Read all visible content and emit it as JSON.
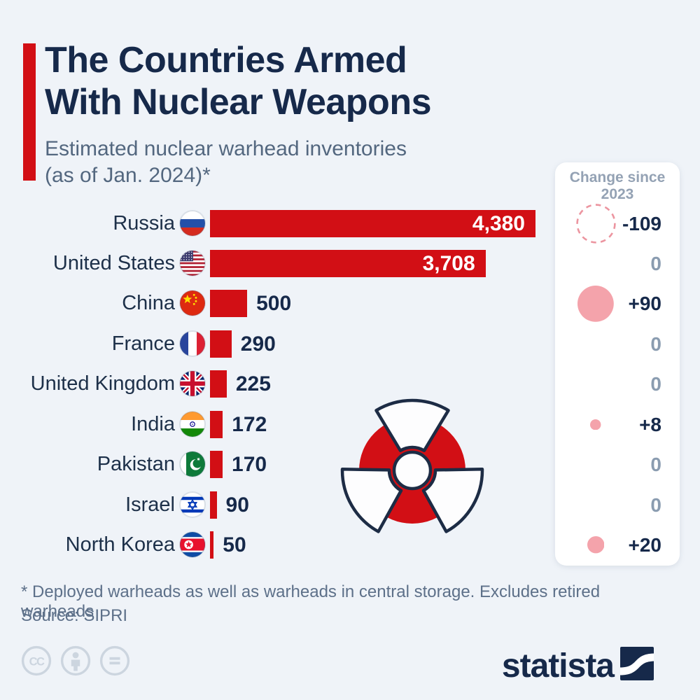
{
  "header": {
    "title_line1": "The Countries Armed",
    "title_line2": "With Nuclear Weapons",
    "subtitle_line1": "Estimated nuclear warhead inventories",
    "subtitle_line2": "(as of Jan. 2024)*"
  },
  "change_panel": {
    "header_line1": "Change since",
    "header_line2": "2023"
  },
  "chart_data": {
    "type": "bar",
    "orientation": "horizontal",
    "title": "The Countries Armed With Nuclear Weapons",
    "subtitle": "Estimated nuclear warhead inventories (as of Jan. 2024)*",
    "categories": [
      "Russia",
      "United States",
      "China",
      "France",
      "United Kingdom",
      "India",
      "Pakistan",
      "Israel",
      "North Korea"
    ],
    "series": [
      {
        "name": "Warheads (Jan 2024)",
        "values": [
          4380,
          3708,
          500,
          290,
          225,
          172,
          170,
          90,
          50
        ]
      },
      {
        "name": "Change since 2023",
        "values": [
          -109,
          0,
          90,
          0,
          0,
          8,
          0,
          0,
          20
        ]
      }
    ],
    "value_labels": [
      "4,380",
      "3,708",
      "500",
      "290",
      "225",
      "172",
      "170",
      "90",
      "50"
    ],
    "change_labels": [
      "-109",
      "0",
      "+90",
      "0",
      "0",
      "+8",
      "0",
      "0",
      "+20"
    ],
    "flags": [
      "flag-russia",
      "flag-united-states",
      "flag-china",
      "flag-france",
      "flag-united-kingdom",
      "flag-india",
      "flag-pakistan",
      "flag-israel",
      "flag-north-korea"
    ],
    "xlim": [
      0,
      4380
    ],
    "grid": false,
    "legend": false
  },
  "footnote": "* Deployed warheads as well as warheads in central storage. Excludes retired warheads",
  "source": "Source: SIPRI",
  "branding": {
    "wordmark": "statista"
  },
  "license_icons": [
    "cc",
    "attribution",
    "no-derivatives"
  ],
  "colors": {
    "background": "#eff3f8",
    "bar_red": "#d20f15",
    "navy": "#16294a",
    "label_navy": "#1d3049",
    "subtle_text": "#53677f",
    "zero_text": "#8a9cb0",
    "panel_header": "#94a2b4",
    "pink_fill": "#f4a3ab",
    "pink_dash": "#ec95a0",
    "license_gray": "#ccd5df"
  }
}
